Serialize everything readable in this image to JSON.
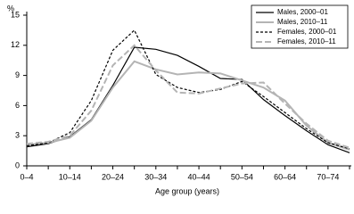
{
  "chart_data": {
    "type": "line",
    "y_label": "%",
    "x_label": "Age group (years)",
    "categories": [
      "0–4",
      null,
      "10–14",
      null,
      "20–24",
      null,
      "30–34",
      null,
      "40–44",
      null,
      "50–54",
      null,
      "60–64",
      null,
      "70–74",
      null
    ],
    "ylim": [
      0,
      15
    ],
    "yticks": [
      0,
      3,
      6,
      9,
      12,
      15
    ],
    "legend": "top-right",
    "series": [
      {
        "name": "Males, 2000–01",
        "color": "#000000",
        "dash": "solid",
        "values": [
          1.9,
          2.2,
          2.9,
          4.6,
          8,
          11.8,
          11.6,
          11,
          9.9,
          8.7,
          8.6,
          6.6,
          5,
          3.5,
          2.1,
          1.3
        ]
      },
      {
        "name": "Males, 2010–11",
        "color": "#b4b4b4",
        "dash": "solid",
        "values": [
          2.1,
          2.3,
          2.8,
          4.5,
          7.8,
          10.4,
          9.6,
          9.1,
          9.3,
          9.2,
          8.5,
          7.8,
          6.5,
          4,
          2.3,
          1.6
        ]
      },
      {
        "name": "Females, 2000–01",
        "color": "#000000",
        "dash": "dashed",
        "values": [
          2,
          2.3,
          3.3,
          6.5,
          11.5,
          13.5,
          9.1,
          7.8,
          7.3,
          7.6,
          8.4,
          6.9,
          5.3,
          3.7,
          2.3,
          1.7
        ]
      },
      {
        "name": "Females, 2010–11",
        "color": "#b4b4b4",
        "dash": "dashed",
        "values": [
          2.2,
          2.4,
          3,
          5.5,
          10,
          12,
          9.5,
          7.3,
          7.2,
          7.7,
          8.2,
          8.3,
          6.2,
          4.2,
          2.5,
          1.8
        ]
      }
    ]
  }
}
